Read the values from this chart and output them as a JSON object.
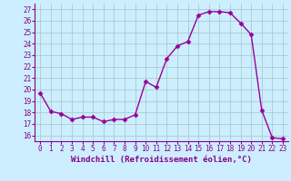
{
  "x": [
    0,
    1,
    2,
    3,
    4,
    5,
    6,
    7,
    8,
    9,
    10,
    11,
    12,
    13,
    14,
    15,
    16,
    17,
    18,
    19,
    20,
    21,
    22,
    23
  ],
  "y": [
    19.7,
    18.1,
    17.9,
    17.4,
    17.6,
    17.6,
    17.2,
    17.4,
    17.4,
    17.8,
    20.7,
    20.2,
    22.7,
    23.8,
    24.2,
    26.5,
    26.8,
    26.8,
    26.7,
    25.8,
    24.8,
    18.2,
    15.8,
    15.7
  ],
  "line_color": "#990099",
  "marker": "D",
  "marker_size": 2.5,
  "bg_color": "#cceeff",
  "grid_color": "#aacccc",
  "xlabel": "Windchill (Refroidissement éolien,°C)",
  "ylabel_ticks": [
    16,
    17,
    18,
    19,
    20,
    21,
    22,
    23,
    24,
    25,
    26,
    27
  ],
  "xlim": [
    -0.5,
    23.5
  ],
  "ylim": [
    15.5,
    27.5
  ],
  "xticks": [
    0,
    1,
    2,
    3,
    4,
    5,
    6,
    7,
    8,
    9,
    10,
    11,
    12,
    13,
    14,
    15,
    16,
    17,
    18,
    19,
    20,
    21,
    22,
    23
  ],
  "title_color": "#880088",
  "tick_fontsize": 5.5,
  "xlabel_fontsize": 6.5,
  "linewidth": 1.0
}
